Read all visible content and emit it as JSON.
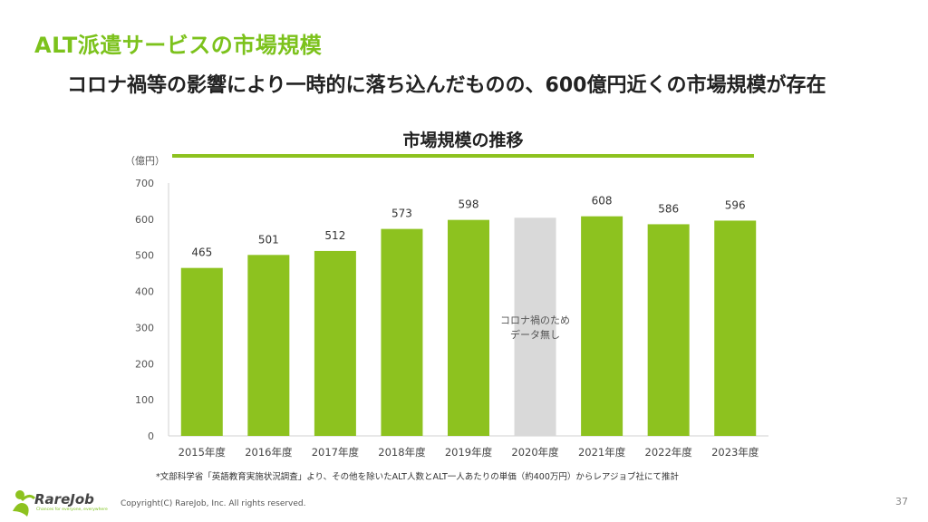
{
  "slide": {
    "title": "ALT派遣サービスの市場規模",
    "headline": "コロナ禍等の影響により一時的に落ち込んだものの、600億円近くの市場規模が存在",
    "footnote": "*文部科学省「英語教育実施状況調査」より、その他を除いたALT人数とALT一人あたりの単価（約400万円）からレアジョブ社にて推計",
    "copyright": "Copyright(C)  RareJob, Inc. All rights reserved.",
    "page_number": "37",
    "logo_text": "RareJob",
    "logo_tagline": "Chances for everyone, everywhere"
  },
  "colors": {
    "brand_green": "#7cc21c",
    "bar_green": "#8dc21f",
    "no_data_gray": "#d9d9d9"
  },
  "chart_data": {
    "type": "bar",
    "title": "市場規模の推移",
    "unit_label": "（億円）",
    "categories": [
      "2015年度",
      "2016年度",
      "2017年度",
      "2018年度",
      "2019年度",
      "2020年度",
      "2021年度",
      "2022年度",
      "2023年度"
    ],
    "values": [
      465,
      501,
      512,
      573,
      598,
      null,
      608,
      586,
      596
    ],
    "data_labels": [
      "465",
      "501",
      "512",
      "573",
      "598",
      "",
      "608",
      "586",
      "596"
    ],
    "no_data": {
      "category": "2020年度",
      "label_lines": [
        "コロナ禍のため",
        "データ無し"
      ]
    },
    "ylim": [
      0,
      700
    ],
    "yticks": [
      0,
      100,
      200,
      300,
      400,
      500,
      600,
      700
    ],
    "grid": false
  }
}
